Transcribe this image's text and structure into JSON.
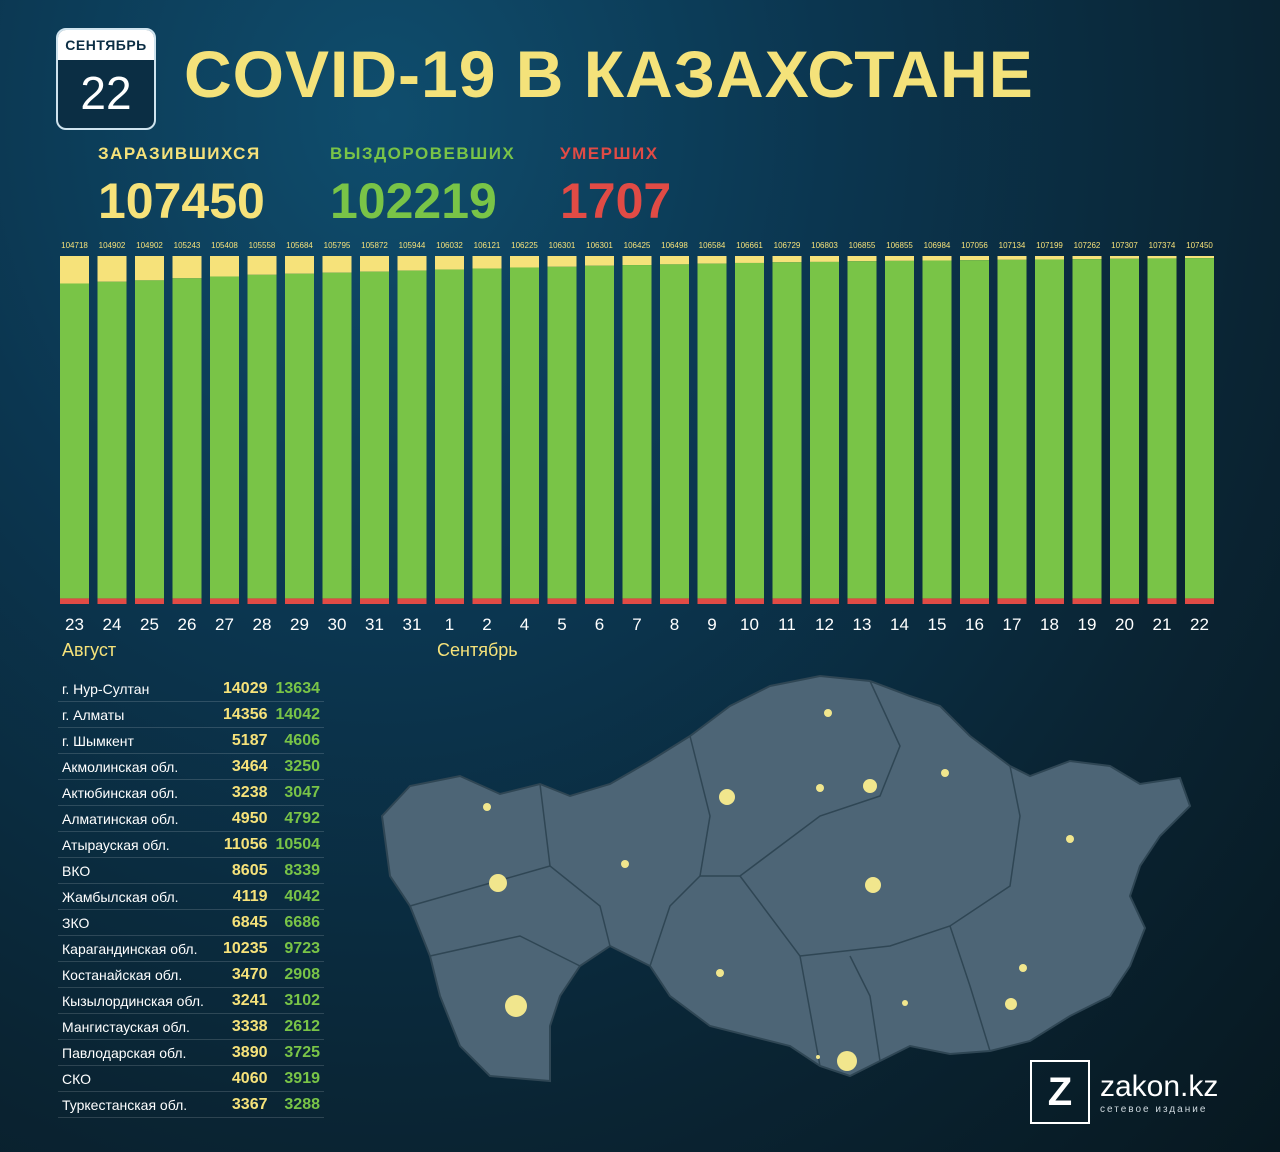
{
  "date": {
    "month": "СЕНТЯБРЬ",
    "day": "22"
  },
  "title": "COVID-19 В КАЗАХСТАНЕ",
  "stats": {
    "infected_label": "ЗАРАЗИВШИХСЯ",
    "infected_value": "107450",
    "recovered_label": "ВЫЗДОРОВЕВШИХ",
    "recovered_value": "102219",
    "deaths_label": "УМЕРШИХ",
    "deaths_value": "1707"
  },
  "colors": {
    "infected": "#f6e27a",
    "recovered": "#79c447",
    "deaths": "#e14b45"
  },
  "chart_data": {
    "type": "bar",
    "stacked": true,
    "categories": [
      "23",
      "24",
      "25",
      "26",
      "27",
      "28",
      "29",
      "30",
      "31",
      "31",
      "1",
      "2",
      "4",
      "5",
      "6",
      "7",
      "8",
      "9",
      "10",
      "11",
      "12",
      "13",
      "14",
      "15",
      "16",
      "17",
      "18",
      "19",
      "20",
      "21",
      "22"
    ],
    "category_group_labels": [
      {
        "label": "Август",
        "start_index": 0
      },
      {
        "label": "Сентябрь",
        "start_index": 10
      }
    ],
    "totals": [
      104718,
      104902,
      104902,
      105243,
      105408,
      105558,
      105684,
      105795,
      105872,
      105944,
      106032,
      106121,
      106225,
      106301,
      106301,
      106425,
      106498,
      106584,
      106661,
      106729,
      106803,
      106855,
      106855,
      106984,
      107056,
      107134,
      107199,
      107262,
      107307,
      107374,
      107450
    ],
    "recovered_fraction": [
      0.905,
      0.91,
      0.914,
      0.92,
      0.925,
      0.93,
      0.933,
      0.936,
      0.939,
      0.942,
      0.945,
      0.948,
      0.951,
      0.953,
      0.956,
      0.958,
      0.96,
      0.962,
      0.964,
      0.966,
      0.967,
      0.969,
      0.97,
      0.971,
      0.972,
      0.973,
      0.974,
      0.975,
      0.976,
      0.977,
      0.978
    ],
    "deaths_fraction": 0.016,
    "ylim": [
      0,
      1
    ]
  },
  "regions": [
    {
      "name": "г. Нур-Султан",
      "infected": "14029",
      "recovered": "13634"
    },
    {
      "name": "г. Алматы",
      "infected": "14356",
      "recovered": "14042"
    },
    {
      "name": "г. Шымкент",
      "infected": "5187",
      "recovered": "4606"
    },
    {
      "name": "Акмолинская обл.",
      "infected": "3464",
      "recovered": "3250"
    },
    {
      "name": "Актюбинская обл.",
      "infected": "3238",
      "recovered": "3047"
    },
    {
      "name": "Алматинская обл.",
      "infected": "4950",
      "recovered": "4792"
    },
    {
      "name": "Атырауская обл.",
      "infected": "11056",
      "recovered": "10504"
    },
    {
      "name": "ВКО",
      "infected": "8605",
      "recovered": "8339"
    },
    {
      "name": "Жамбылская обл.",
      "infected": "4119",
      "recovered": "4042"
    },
    {
      "name": "ЗКО",
      "infected": "6845",
      "recovered": "6686"
    },
    {
      "name": "Карагандинская обл.",
      "infected": "10235",
      "recovered": "9723"
    },
    {
      "name": "Костанайская обл.",
      "infected": "3470",
      "recovered": "2908"
    },
    {
      "name": "Кызылординская обл.",
      "infected": "3241",
      "recovered": "3102"
    },
    {
      "name": "Мангистауская обл.",
      "infected": "3338",
      "recovered": "2612"
    },
    {
      "name": "Павлодарская обл.",
      "infected": "3890",
      "recovered": "3725"
    },
    {
      "name": "СКО",
      "infected": "4060",
      "recovered": "3919"
    },
    {
      "name": "Туркестанская обл.",
      "infected": "3367",
      "recovered": "3288"
    }
  ],
  "logo": {
    "letter": "Z",
    "name": "zakon.kz",
    "subtitle": "сетевое издание"
  }
}
